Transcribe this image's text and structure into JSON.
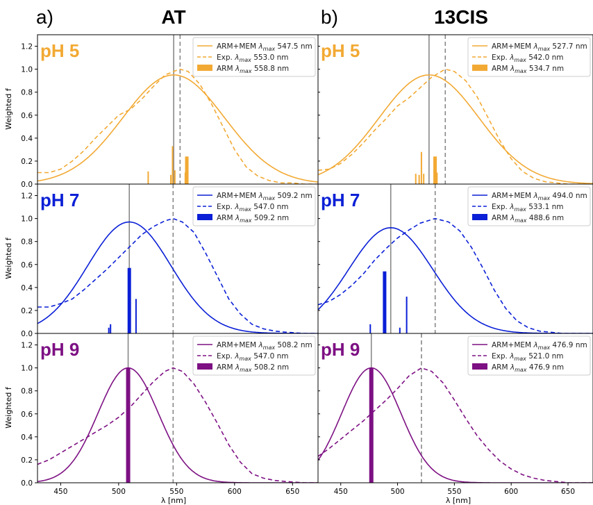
{
  "figure": {
    "panel_letters": [
      "a)",
      "b)"
    ],
    "column_titles": [
      "AT",
      "13CIS"
    ],
    "ylabel": "Weighted f",
    "xlabel": "λ [nm]"
  },
  "chart_data": [
    {
      "type": "line",
      "column": 0,
      "row": 0,
      "label": "pH 5",
      "color": "#f2a933",
      "xlim": [
        430,
        672
      ],
      "ylim": [
        0,
        1.3
      ],
      "xticks": [
        450,
        500,
        550,
        600,
        650
      ],
      "yticks": [
        0.0,
        0.2,
        0.4,
        0.6,
        0.8,
        1.0,
        1.2
      ],
      "legend": [
        "ARM+MEM λmax 547.5 nm",
        "Exp. λmax 553.0 nm",
        "ARM λmax 558.8 nm"
      ],
      "calc_center": 547.5,
      "calc_peak": 0.95,
      "calc_sigma": 44,
      "exp_max": 553.0,
      "exp_x": [
        430,
        440,
        450,
        460,
        470,
        480,
        490,
        500,
        510,
        520,
        530,
        540,
        550,
        553,
        560,
        570,
        580,
        590,
        600,
        610,
        620,
        630,
        640,
        650,
        660,
        672
      ],
      "exp_y": [
        0.1,
        0.1,
        0.13,
        0.2,
        0.29,
        0.4,
        0.5,
        0.6,
        0.65,
        0.74,
        0.85,
        0.95,
        0.99,
        1.0,
        0.98,
        0.87,
        0.7,
        0.5,
        0.3,
        0.15,
        0.07,
        0.03,
        0.01,
        0.01,
        0.0,
        0.0
      ],
      "sticks": [
        [
          525.5,
          0.11,
          2
        ],
        [
          545,
          0.08,
          2
        ],
        [
          546.5,
          0.33,
          2
        ],
        [
          548.5,
          0.12,
          2
        ],
        [
          557.5,
          0.1,
          2
        ],
        [
          558.8,
          0.24,
          5
        ]
      ]
    },
    {
      "type": "line",
      "column": 1,
      "row": 0,
      "label": "pH 5",
      "color": "#f2a933",
      "xlim": [
        430,
        672
      ],
      "ylim": [
        0,
        1.3
      ],
      "xticks": [
        450,
        500,
        550,
        600,
        650
      ],
      "yticks": [
        0.0,
        0.2,
        0.4,
        0.6,
        0.8,
        1.0,
        1.2
      ],
      "legend": [
        "ARM+MEM λmax 527.7 nm",
        "Exp. λmax 542.0 nm",
        "ARM λmax 534.7 nm"
      ],
      "calc_center": 527.7,
      "calc_peak": 0.95,
      "calc_sigma": 44,
      "exp_max": 542.0,
      "exp_x": [
        430,
        440,
        450,
        460,
        470,
        480,
        490,
        500,
        510,
        520,
        530,
        542,
        550,
        560,
        570,
        580,
        590,
        600,
        610,
        620,
        630,
        640,
        650,
        660,
        672
      ],
      "exp_y": [
        0.12,
        0.13,
        0.18,
        0.26,
        0.36,
        0.47,
        0.57,
        0.68,
        0.75,
        0.84,
        0.93,
        1.0,
        0.98,
        0.9,
        0.76,
        0.57,
        0.38,
        0.22,
        0.11,
        0.05,
        0.02,
        0.01,
        0.0,
        0.0,
        0.0
      ],
      "sticks": [
        [
          516,
          0.09,
          2
        ],
        [
          519,
          0.08,
          2
        ],
        [
          521,
          0.28,
          2
        ],
        [
          523,
          0.09,
          2
        ],
        [
          533,
          0.24,
          5
        ],
        [
          534.7,
          0.1,
          2
        ]
      ]
    },
    {
      "type": "line",
      "column": 0,
      "row": 1,
      "label": "pH 7",
      "color": "#0a1fd6",
      "xlim": [
        430,
        672
      ],
      "ylim": [
        0,
        1.3
      ],
      "xticks": [
        450,
        500,
        550,
        600,
        650
      ],
      "yticks": [
        0.0,
        0.2,
        0.4,
        0.6,
        0.8,
        1.0,
        1.2
      ],
      "legend": [
        "ARM+MEM λmax 509.2 nm",
        "Exp. λmax 547.0 nm",
        "ARM λmax 509.2 nm"
      ],
      "calc_center": 509.2,
      "calc_peak": 0.97,
      "calc_sigma": 36,
      "exp_max": 547.0,
      "exp_x": [
        430,
        440,
        450,
        460,
        470,
        480,
        490,
        500,
        510,
        520,
        530,
        540,
        547,
        555,
        565,
        575,
        585,
        595,
        605,
        615,
        625,
        635,
        645,
        660,
        672
      ],
      "exp_y": [
        0.23,
        0.23,
        0.26,
        0.3,
        0.38,
        0.47,
        0.56,
        0.66,
        0.76,
        0.86,
        0.93,
        0.98,
        1.0,
        0.97,
        0.88,
        0.7,
        0.5,
        0.3,
        0.17,
        0.08,
        0.04,
        0.02,
        0.01,
        0.0,
        0.0
      ],
      "sticks": [
        [
          491.5,
          0.05,
          2
        ],
        [
          493,
          0.08,
          2
        ],
        [
          509.2,
          0.57,
          5
        ],
        [
          515,
          0.3,
          2
        ]
      ]
    },
    {
      "type": "line",
      "column": 1,
      "row": 1,
      "label": "pH 7",
      "color": "#0a1fd6",
      "xlim": [
        430,
        672
      ],
      "ylim": [
        0,
        1.3
      ],
      "xticks": [
        450,
        500,
        550,
        600,
        650
      ],
      "yticks": [
        0.0,
        0.2,
        0.4,
        0.6,
        0.8,
        1.0,
        1.2
      ],
      "legend": [
        "ARM+MEM λmax 494.0 nm",
        "Exp. λmax 533.1 nm",
        "ARM λmax 488.6 nm"
      ],
      "calc_center": 494.0,
      "calc_peak": 0.92,
      "calc_sigma": 37,
      "exp_max": 533.1,
      "exp_x": [
        430,
        440,
        450,
        460,
        470,
        480,
        490,
        500,
        510,
        520,
        533,
        545,
        555,
        565,
        575,
        585,
        595,
        605,
        615,
        625,
        635,
        645,
        660,
        672
      ],
      "exp_y": [
        0.25,
        0.28,
        0.34,
        0.42,
        0.52,
        0.64,
        0.74,
        0.83,
        0.9,
        0.96,
        1.0,
        0.97,
        0.89,
        0.75,
        0.57,
        0.38,
        0.22,
        0.11,
        0.05,
        0.02,
        0.01,
        0.0,
        0.0,
        0.0
      ],
      "sticks": [
        [
          476,
          0.08,
          2
        ],
        [
          488.6,
          0.54,
          5
        ],
        [
          502,
          0.05,
          2
        ],
        [
          508,
          0.32,
          2
        ]
      ]
    },
    {
      "type": "line",
      "column": 0,
      "row": 2,
      "label": "pH 9",
      "color": "#7d1083",
      "xlim": [
        430,
        672
      ],
      "ylim": [
        0,
        1.3
      ],
      "xticks": [
        450,
        500,
        550,
        600,
        650
      ],
      "yticks": [
        0.0,
        0.2,
        0.4,
        0.6,
        0.8,
        1.0,
        1.2
      ],
      "legend": [
        "ARM+MEM λmax 508.2 nm",
        "Exp. λmax 547.0 nm",
        "ARM λmax 508.2 nm"
      ],
      "calc_center": 508.2,
      "calc_peak": 1.0,
      "calc_sigma": 26,
      "exp_max": 547.0,
      "exp_x": [
        430,
        440,
        450,
        460,
        470,
        480,
        490,
        500,
        510,
        520,
        530,
        540,
        547,
        555,
        565,
        575,
        585,
        595,
        605,
        615,
        625,
        635,
        645,
        660,
        672
      ],
      "exp_y": [
        0.16,
        0.2,
        0.26,
        0.32,
        0.38,
        0.44,
        0.5,
        0.57,
        0.66,
        0.77,
        0.88,
        0.97,
        1.0,
        0.97,
        0.86,
        0.7,
        0.52,
        0.33,
        0.18,
        0.08,
        0.04,
        0.02,
        0.01,
        0.0,
        0.0
      ],
      "sticks": [
        [
          508.2,
          1.0,
          6
        ]
      ]
    },
    {
      "type": "line",
      "column": 1,
      "row": 2,
      "label": "pH 9",
      "color": "#7d1083",
      "xlim": [
        430,
        672
      ],
      "ylim": [
        0,
        1.3
      ],
      "xticks": [
        450,
        500,
        550,
        600,
        650
      ],
      "yticks": [
        0.0,
        0.2,
        0.4,
        0.6,
        0.8,
        1.0,
        1.2
      ],
      "legend": [
        "ARM+MEM λmax 476.9 nm",
        "Exp. λmax 521.0 nm",
        "ARM λmax 476.9 nm"
      ],
      "calc_center": 476.9,
      "calc_peak": 1.0,
      "calc_sigma": 26,
      "exp_max": 521.0,
      "exp_x": [
        430,
        440,
        450,
        460,
        470,
        480,
        490,
        500,
        510,
        521,
        530,
        540,
        550,
        560,
        570,
        580,
        590,
        600,
        610,
        620,
        630,
        640,
        650,
        660,
        672
      ],
      "exp_y": [
        0.23,
        0.3,
        0.38,
        0.46,
        0.54,
        0.63,
        0.72,
        0.82,
        0.93,
        1.0,
        0.97,
        0.87,
        0.72,
        0.56,
        0.41,
        0.29,
        0.19,
        0.12,
        0.07,
        0.04,
        0.02,
        0.01,
        0.0,
        0.0,
        0.0
      ],
      "sticks": [
        [
          476.9,
          1.0,
          6
        ]
      ]
    }
  ]
}
